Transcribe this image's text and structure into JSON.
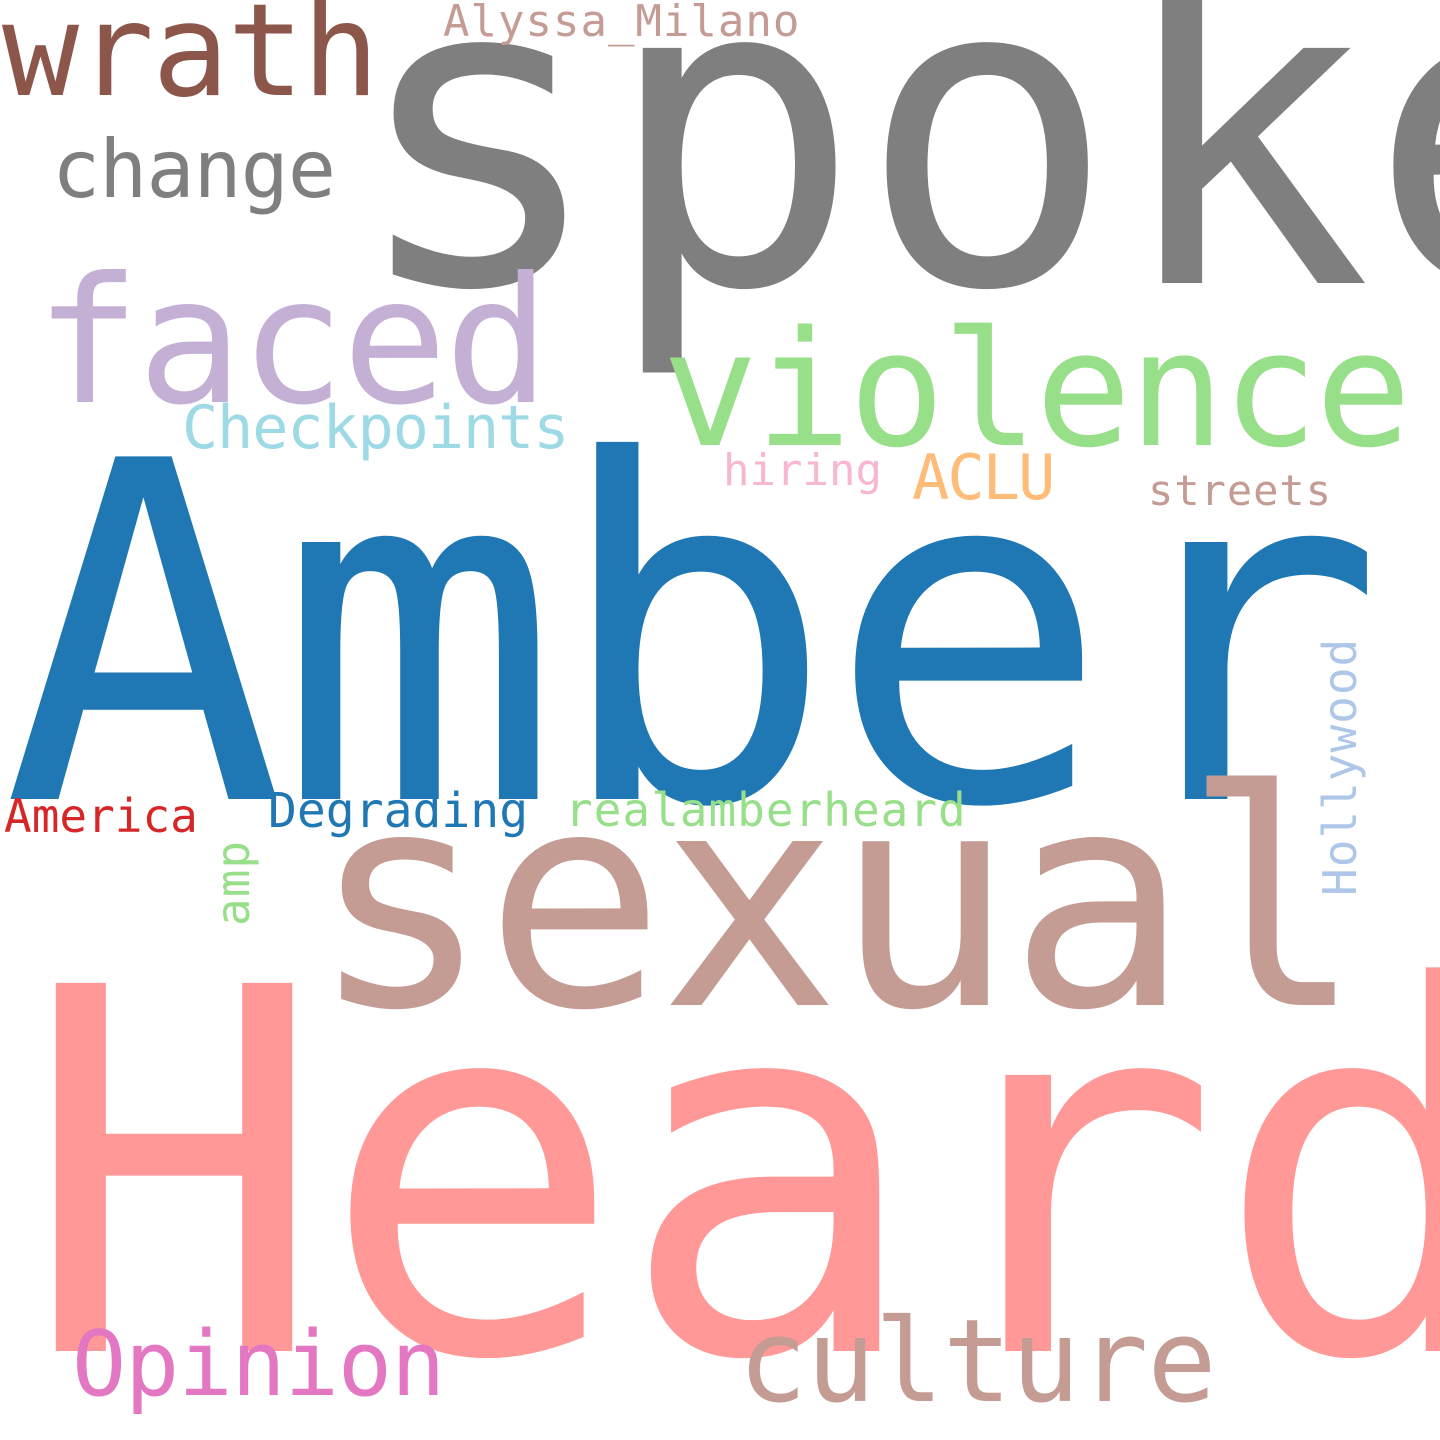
{
  "words": {
    "heard": {
      "text": "Heard",
      "color": "#ff9896"
    },
    "amber": {
      "text": "Amber",
      "color": "#1f77b4"
    },
    "spoke": {
      "text": "spoke",
      "color": "#7f7f7f"
    },
    "sexual": {
      "text": "sexual",
      "color": "#c49c94"
    },
    "violence": {
      "text": "violence",
      "color": "#98df8a"
    },
    "faced": {
      "text": "faced",
      "color": "#c5b0d5"
    },
    "culture": {
      "text": "culture",
      "color": "#c49c94"
    },
    "wrath": {
      "text": "wrath",
      "color": "#8c564b"
    },
    "opinion": {
      "text": "Opinion",
      "color": "#e377c2"
    },
    "change": {
      "text": "change",
      "color": "#7f7f7f"
    },
    "checkpoints": {
      "text": "Checkpoints",
      "color": "#9edae5"
    },
    "aclu": {
      "text": "ACLU",
      "color": "#ffbb78"
    },
    "realamberheard": {
      "text": "realamberheard",
      "color": "#98df8a"
    },
    "degrading": {
      "text": "Degrading",
      "color": "#1f77b4"
    },
    "america": {
      "text": "America",
      "color": "#d62728"
    },
    "streets": {
      "text": "streets",
      "color": "#c49c94"
    },
    "hiring": {
      "text": "hiring",
      "color": "#f7b6d2"
    },
    "alyssa_milano": {
      "text": "Alyssa_Milano",
      "color": "#c49c94"
    },
    "hollywood": {
      "text": "Hollywood",
      "color": "#aec7e8"
    },
    "amp": {
      "text": "amp",
      "color": "#98df8a"
    }
  }
}
